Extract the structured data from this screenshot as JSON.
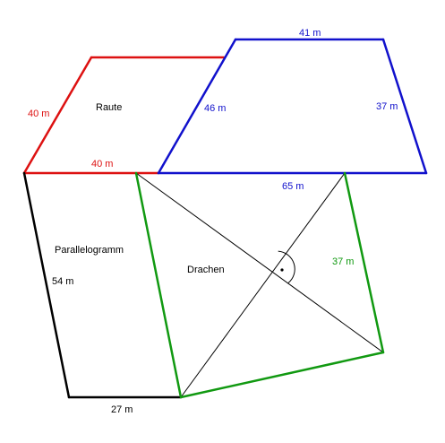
{
  "colors": {
    "raute": "#dd1111",
    "trapez": "#1111cc",
    "parallelogramm": "#000000",
    "drachen": "#119911",
    "label_dark": "#000000"
  },
  "shapes": {
    "raute": {
      "name": "Raute",
      "side_left": "40 m",
      "side_bottom": "40 m"
    },
    "trapez": {
      "top": "41 m",
      "left": "46 m",
      "right": "37 m",
      "bottom": "65 m"
    },
    "parallelogramm": {
      "name": "Parallelogramm",
      "left": "54 m",
      "bottom": "27 m"
    },
    "drachen": {
      "name": "Drachen",
      "right": "37 m"
    }
  }
}
